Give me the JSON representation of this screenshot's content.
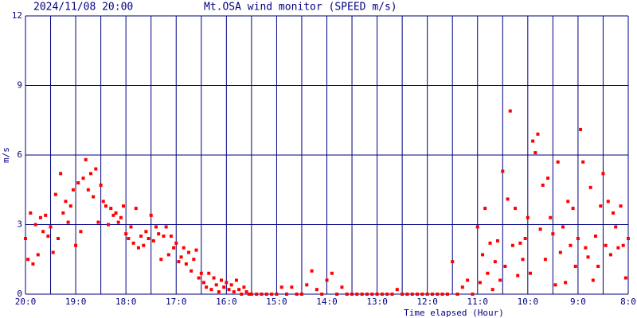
{
  "chart_data": {
    "type": "scatter",
    "title": "Mt.OSA wind monitor (SPEED m/s)",
    "timestamp": "2024/11/08 20:00",
    "xlabel": "Time elapsed (Hour)",
    "ylabel": "m/s",
    "color": "#ff0000",
    "grid": true,
    "xlim": [
      0,
      12
    ],
    "ylim": [
      0,
      12
    ],
    "yticks": [
      0,
      3,
      6,
      9,
      12
    ],
    "xticks": [
      {
        "value": 0,
        "label": "20:0"
      },
      {
        "value": 1,
        "label": "19:0"
      },
      {
        "value": 2,
        "label": "18:0"
      },
      {
        "value": 3,
        "label": "17:0"
      },
      {
        "value": 4,
        "label": "16:0"
      },
      {
        "value": 5,
        "label": "15:0"
      },
      {
        "value": 6,
        "label": "14:0"
      },
      {
        "value": 7,
        "label": "13:0"
      },
      {
        "value": 8,
        "label": "12:0"
      },
      {
        "value": 9,
        "label": "11:0"
      },
      {
        "value": 10,
        "label": "10:0"
      },
      {
        "value": 11,
        "label": "9:0"
      },
      {
        "value": 12,
        "label": "8:0"
      }
    ],
    "xminor": [
      0.5,
      1.5,
      2.5,
      3.5,
      4.5,
      5.5,
      6.5,
      7.5,
      8.5,
      9.5,
      10.5,
      11.5
    ],
    "x": [
      0.0,
      0.05,
      0.1,
      0.15,
      0.2,
      0.25,
      0.3,
      0.35,
      0.4,
      0.45,
      0.5,
      0.55,
      0.6,
      0.65,
      0.7,
      0.75,
      0.8,
      0.85,
      0.9,
      0.95,
      1.0,
      1.05,
      1.1,
      1.15,
      1.2,
      1.25,
      1.3,
      1.35,
      1.4,
      1.45,
      1.5,
      1.55,
      1.6,
      1.65,
      1.7,
      1.75,
      1.8,
      1.85,
      1.9,
      1.95,
      2.0,
      2.05,
      2.1,
      2.15,
      2.2,
      2.25,
      2.3,
      2.35,
      2.4,
      2.45,
      2.5,
      2.55,
      2.6,
      2.65,
      2.7,
      2.75,
      2.8,
      2.85,
      2.9,
      2.95,
      3.0,
      3.05,
      3.1,
      3.15,
      3.2,
      3.25,
      3.3,
      3.35,
      3.4,
      3.45,
      3.5,
      3.55,
      3.6,
      3.65,
      3.7,
      3.75,
      3.8,
      3.85,
      3.9,
      3.95,
      4.0,
      4.05,
      4.1,
      4.15,
      4.2,
      4.25,
      4.3,
      4.35,
      4.4,
      4.45,
      4.5,
      4.6,
      4.7,
      4.8,
      4.9,
      5.0,
      5.1,
      5.2,
      5.3,
      5.4,
      5.5,
      5.6,
      5.7,
      5.8,
      5.9,
      6.0,
      6.1,
      6.2,
      6.3,
      6.4,
      6.5,
      6.6,
      6.7,
      6.8,
      6.9,
      7.0,
      7.1,
      7.2,
      7.3,
      7.4,
      7.5,
      7.6,
      7.7,
      7.8,
      7.9,
      8.0,
      8.1,
      8.2,
      8.3,
      8.4,
      8.5,
      8.6,
      8.7,
      8.8,
      8.9,
      9.0,
      9.05,
      9.1,
      9.15,
      9.2,
      9.25,
      9.3,
      9.35,
      9.4,
      9.45,
      9.5,
      9.55,
      9.6,
      9.65,
      9.7,
      9.75,
      9.8,
      9.85,
      9.9,
      9.95,
      10.0,
      10.05,
      10.1,
      10.15,
      10.2,
      10.25,
      10.3,
      10.35,
      10.4,
      10.45,
      10.5,
      10.55,
      10.6,
      10.65,
      10.7,
      10.75,
      10.8,
      10.85,
      10.9,
      10.95,
      11.0,
      11.05,
      11.1,
      11.15,
      11.2,
      11.25,
      11.3,
      11.35,
      11.4,
      11.45,
      11.5,
      11.55,
      11.6,
      11.65,
      11.7,
      11.75,
      11.8,
      11.85,
      11.9,
      11.95,
      12.0
    ],
    "values": [
      2.4,
      1.5,
      3.5,
      1.3,
      3.0,
      1.7,
      3.3,
      2.7,
      3.4,
      2.5,
      2.9,
      1.8,
      4.3,
      2.4,
      5.2,
      3.5,
      4.0,
      3.1,
      3.8,
      4.5,
      2.1,
      4.8,
      2.7,
      5.0,
      5.8,
      4.5,
      5.2,
      4.2,
      5.4,
      3.1,
      4.7,
      4.0,
      3.8,
      3.0,
      3.7,
      3.4,
      3.5,
      3.1,
      3.3,
      3.8,
      2.6,
      2.4,
      2.9,
      2.2,
      3.7,
      2.0,
      2.5,
      2.1,
      2.7,
      2.4,
      3.4,
      2.3,
      2.9,
      2.6,
      1.5,
      2.5,
      2.9,
      1.7,
      2.5,
      2.0,
      2.2,
      1.4,
      1.6,
      2.0,
      1.3,
      1.8,
      1.0,
      1.5,
      1.9,
      0.7,
      0.9,
      0.5,
      0.3,
      0.9,
      0.2,
      0.7,
      0.4,
      0.1,
      0.6,
      0.3,
      0.5,
      0.2,
      0.4,
      0.1,
      0.6,
      0.2,
      0.0,
      0.3,
      0.1,
      0.0,
      0,
      0,
      0,
      0,
      0,
      0,
      0.3,
      0,
      0.3,
      0,
      0,
      0.4,
      1.0,
      0.2,
      0,
      0.6,
      0.9,
      0,
      0.3,
      0,
      0,
      0,
      0,
      0,
      0,
      0,
      0,
      0,
      0,
      0.2,
      0,
      0,
      0,
      0,
      0,
      0,
      0,
      0,
      0,
      0,
      1.4,
      0,
      0.3,
      0.6,
      0,
      2.9,
      0.5,
      1.7,
      3.7,
      0.9,
      2.2,
      0.2,
      1.4,
      2.3,
      0.6,
      5.3,
      1.2,
      4.1,
      7.9,
      2.1,
      3.7,
      0.8,
      2.2,
      1.5,
      2.4,
      3.3,
      0.9,
      6.6,
      6.1,
      6.9,
      2.8,
      4.7,
      1.5,
      5.0,
      3.3,
      2.6,
      0.4,
      5.7,
      1.8,
      2.9,
      0.5,
      4.0,
      2.1,
      3.7,
      1.2,
      2.4,
      7.1,
      5.7,
      2.0,
      1.6,
      4.6,
      0.6,
      2.5,
      1.2,
      3.8,
      5.2,
      2.1,
      4.0,
      1.7,
      3.5,
      2.9,
      2.0,
      3.8,
      2.1,
      0.7,
      2.4
    ]
  }
}
